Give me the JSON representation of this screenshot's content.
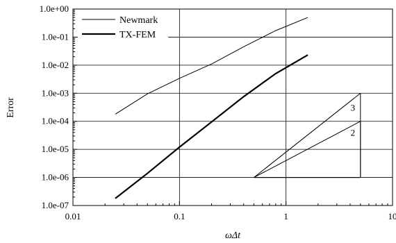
{
  "chart_data": {
    "type": "line",
    "xlabel": "ωΔt",
    "ylabel": "Error",
    "xscale": "log",
    "yscale": "log",
    "xlim": [
      0.01,
      10
    ],
    "ylim": [
      1e-07,
      1
    ],
    "grid": "major",
    "legend_position": "top-left",
    "x_tick_labels": [
      "0.01",
      "0.1",
      "1",
      "10"
    ],
    "x_tick_values": [
      0.01,
      0.1,
      1,
      10
    ],
    "y_tick_labels": [
      "1.0e-07",
      "1.0e-06",
      "1.0e-05",
      "1.0e-04",
      "1.0e-03",
      "1.0e-02",
      "1.0e-01",
      "1.0e+00"
    ],
    "y_tick_values": [
      1e-07,
      1e-06,
      1e-05,
      0.0001,
      0.001,
      0.01,
      0.1,
      1
    ],
    "series": [
      {
        "name": "Newmark",
        "line_width": "thin",
        "x": [
          0.025,
          0.05,
          0.1,
          0.2,
          0.4,
          0.8,
          1.6
        ],
        "y": [
          0.00018,
          0.00095,
          0.0034,
          0.011,
          0.045,
          0.17,
          0.5
        ]
      },
      {
        "name": "TX-FEM",
        "line_width": "thick",
        "x": [
          0.025,
          0.05,
          0.1,
          0.2,
          0.4,
          0.8,
          1.6
        ],
        "y": [
          1.8e-07,
          1.4e-06,
          1.2e-05,
          9.5e-05,
          0.00075,
          0.005,
          0.023
        ]
      }
    ],
    "slope_triangles": [
      {
        "label": "3",
        "x0": 0.5,
        "y0": 1e-06,
        "x1": 5,
        "y1": 0.001
      },
      {
        "label": "2",
        "x0": 0.5,
        "y0": 1e-06,
        "x1": 5,
        "y1": 0.0001
      }
    ]
  }
}
